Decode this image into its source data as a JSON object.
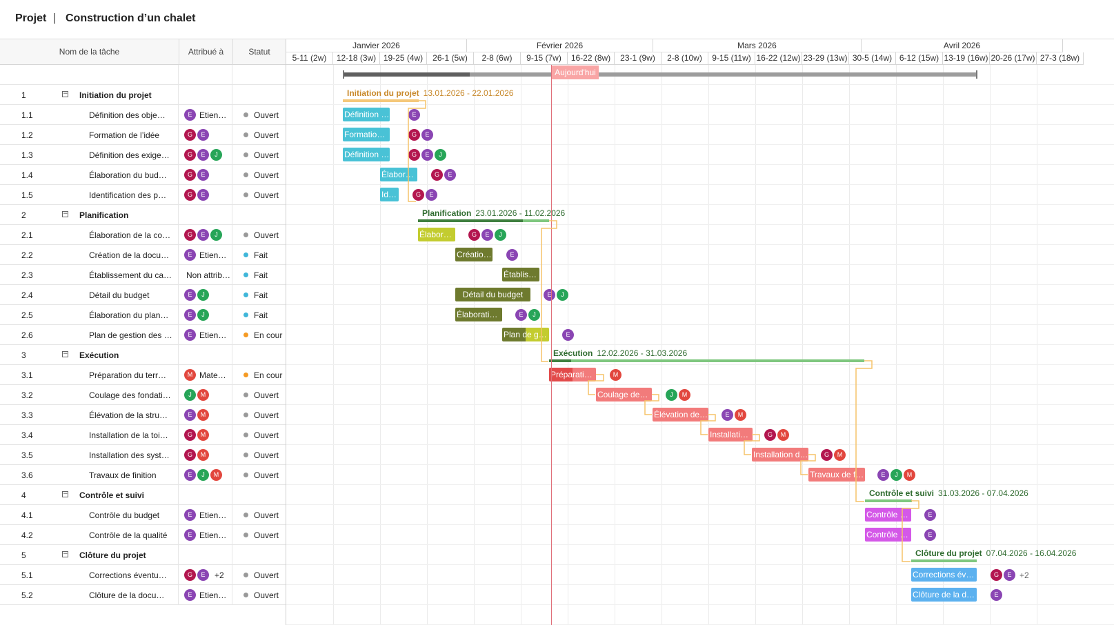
{
  "header": {
    "project_label": "Projet",
    "separator": "|",
    "project_name": "Construction d’un chalet"
  },
  "grid": {
    "columns": {
      "name": "Nom de la tâche",
      "assigned": "Attribué à",
      "status": "Statut"
    },
    "rows": [
      {
        "num": "1",
        "name": "Initiation du projet",
        "parent": true
      },
      {
        "num": "1.1",
        "name": "Définition des obje…",
        "assignees": [
          "E"
        ],
        "assign_text": "Etien…",
        "status": "Ouvert",
        "status_color": "#999999"
      },
      {
        "num": "1.2",
        "name": "Formation de l’idée",
        "assignees": [
          "G",
          "E"
        ],
        "status": "Ouvert",
        "status_color": "#999999"
      },
      {
        "num": "1.3",
        "name": "Définition des exige…",
        "assignees": [
          "G",
          "E",
          "J"
        ],
        "status": "Ouvert",
        "status_color": "#999999"
      },
      {
        "num": "1.4",
        "name": "Élaboration du bud…",
        "assignees": [
          "G",
          "E"
        ],
        "status": "Ouvert",
        "status_color": "#999999"
      },
      {
        "num": "1.5",
        "name": "Identification des p…",
        "assignees": [
          "G",
          "E"
        ],
        "status": "Ouvert",
        "status_color": "#999999"
      },
      {
        "num": "2",
        "name": "Planification",
        "parent": true
      },
      {
        "num": "2.1",
        "name": "Élaboration de la co…",
        "assignees": [
          "G",
          "E",
          "J"
        ],
        "status": "Ouvert",
        "status_color": "#999999"
      },
      {
        "num": "2.2",
        "name": "Création de la docu…",
        "assignees": [
          "E"
        ],
        "assign_text": "Etien…",
        "status": "Fait",
        "status_color": "#3fb6d9"
      },
      {
        "num": "2.3",
        "name": "Établissement du ca…",
        "assignees": [],
        "assign_text": "Non attrib…",
        "status": "Fait",
        "status_color": "#3fb6d9"
      },
      {
        "num": "2.4",
        "name": "Détail du budget",
        "assignees": [
          "E",
          "J"
        ],
        "status": "Fait",
        "status_color": "#3fb6d9"
      },
      {
        "num": "2.5",
        "name": "Élaboration du plan…",
        "assignees": [
          "E",
          "J"
        ],
        "status": "Fait",
        "status_color": "#3fb6d9"
      },
      {
        "num": "2.6",
        "name": "Plan de gestion des …",
        "assignees": [
          "E"
        ],
        "assign_text": "Etien…",
        "status": "En cour",
        "status_color": "#f59a23"
      },
      {
        "num": "3",
        "name": "Exécution",
        "parent": true
      },
      {
        "num": "3.1",
        "name": "Préparation du terr…",
        "assignees": [
          "M"
        ],
        "assign_text": "Mate…",
        "status": "En cour",
        "status_color": "#f59a23"
      },
      {
        "num": "3.2",
        "name": "Coulage des fondati…",
        "assignees": [
          "J",
          "M"
        ],
        "status": "Ouvert",
        "status_color": "#999999"
      },
      {
        "num": "3.3",
        "name": "Élévation de la stru…",
        "assignees": [
          "E",
          "M"
        ],
        "status": "Ouvert",
        "status_color": "#999999"
      },
      {
        "num": "3.4",
        "name": "Installation de la toi…",
        "assignees": [
          "G",
          "M"
        ],
        "status": "Ouvert",
        "status_color": "#999999"
      },
      {
        "num": "3.5",
        "name": "Installation des syst…",
        "assignees": [
          "G",
          "M"
        ],
        "status": "Ouvert",
        "status_color": "#999999"
      },
      {
        "num": "3.6",
        "name": "Travaux de finition",
        "assignees": [
          "E",
          "J",
          "M"
        ],
        "status": "Ouvert",
        "status_color": "#999999"
      },
      {
        "num": "4",
        "name": "Contrôle et suivi",
        "parent": true
      },
      {
        "num": "4.1",
        "name": "Contrôle du budget",
        "assignees": [
          "E"
        ],
        "assign_text": "Etien…",
        "status": "Ouvert",
        "status_color": "#999999"
      },
      {
        "num": "4.2",
        "name": "Contrôle de la qualité",
        "assignees": [
          "E"
        ],
        "assign_text": "Etien…",
        "status": "Ouvert",
        "status_color": "#999999"
      },
      {
        "num": "5",
        "name": "Clôture du projet",
        "parent": true
      },
      {
        "num": "5.1",
        "name": "Corrections éventu…",
        "assignees": [
          "G",
          "E"
        ],
        "assign_text": "+2",
        "status": "Ouvert",
        "status_color": "#999999"
      },
      {
        "num": "5.2",
        "name": "Clôture de la docu…",
        "assignees": [
          "E"
        ],
        "assign_text": "Etien…",
        "status": "Ouvert",
        "status_color": "#999999"
      }
    ]
  },
  "avatar_colors": {
    "G": "#b3164f",
    "E": "#8a45b3",
    "J": "#27a558",
    "M": "#e2473e"
  },
  "timeline": {
    "months": [
      "Janvier 2026",
      "Février 2026",
      "Mars 2026",
      "Avril 2026"
    ],
    "weeks": [
      "5-11 (2w)",
      "12-18 (3w)",
      "19-25 (4w)",
      "26-1 (5w)",
      "2-8 (6w)",
      "9-15 (7w)",
      "16-22 (8w)",
      "23-1 (9w)",
      "2-8 (10w)",
      "9-15 (11w)",
      "16-22 (12w)",
      "23-29 (13w)",
      "30-5 (14w)",
      "6-12 (15w)",
      "13-19 (16w)",
      "20-26 (17w)",
      "27-3 (18w)"
    ],
    "today_label": "Aujourd'hui",
    "project_progress": 0.2
  },
  "summaries": [
    {
      "name": "Initiation du projet",
      "dates": "13.01.2026 - 22.01.2026",
      "color": "#f5c87a",
      "text_color": "#c8892b",
      "progress": 1.0
    },
    {
      "name": "Planification",
      "dates": "23.01.2026 - 11.02.2026",
      "color": "#7fc77f",
      "dark": "#3f7f3f",
      "text_color": "#2f6b2f",
      "progress": 0.8
    },
    {
      "name": "Exécution",
      "dates": "12.02.2026 - 31.03.2026",
      "color": "#7fc77f",
      "dark": "#3f7f3f",
      "text_color": "#2f6b2f",
      "progress": 0.07
    },
    {
      "name": "Contrôle et suivi",
      "dates": "31.03.2026 - 07.04.2026",
      "color": "#7fc77f",
      "dark": "#3f7f3f",
      "text_color": "#2f6b2f",
      "progress": 0
    },
    {
      "name": "Clôture du projet",
      "dates": "07.04.2026 - 16.04.2026",
      "color": "#7fc77f",
      "dark": "#3f7f3f",
      "text_color": "#2f6b2f",
      "progress": 0
    }
  ],
  "tasks": [
    {
      "label": "Définition …",
      "color": "#49c2d6"
    },
    {
      "label": "Formation…",
      "color": "#49c2d6"
    },
    {
      "label": "Définition …",
      "color": "#49c2d6"
    },
    {
      "label": "Élabora…",
      "color": "#49c2d6"
    },
    {
      "label": "Id…",
      "color": "#49c2d6"
    },
    {
      "label": "Élabora…",
      "color": "#c3cc2f"
    },
    {
      "label": "Créatio…",
      "color": "#6e7a2e"
    },
    {
      "label": "Établiss…",
      "color": "#6e7a2e"
    },
    {
      "label": "Détail du budget",
      "color": "#6e7a2e"
    },
    {
      "label": "Élaboratio…",
      "color": "#6e7a2e"
    },
    {
      "label": "Plan de g…",
      "color": "#c3cc2f",
      "dark": "#6e7a2e",
      "progress": 0.5
    },
    {
      "label": "Préparatio…",
      "color": "#f27b7b",
      "dark": "#e24a4a",
      "progress": 0.5
    },
    {
      "label": "Coulage des …",
      "color": "#f27b7b"
    },
    {
      "label": "Élévation de …",
      "color": "#f27b7b"
    },
    {
      "label": "Installatio…",
      "color": "#f27b7b"
    },
    {
      "label": "Installation d…",
      "color": "#f27b7b"
    },
    {
      "label": "Travaux de fi…",
      "color": "#f27b7b"
    },
    {
      "label": "Contrôle d…",
      "color": "#d458e8"
    },
    {
      "label": "Contrôle d…",
      "color": "#d458e8"
    },
    {
      "label": "Corrections éve…",
      "color": "#5cb1ef"
    },
    {
      "label": "Clôture de la do…",
      "color": "#5cb1ef"
    }
  ],
  "colors": {
    "link": "#f5c46a",
    "today_line": "#e0707a",
    "today_label_bg": "#f9a5a5"
  }
}
